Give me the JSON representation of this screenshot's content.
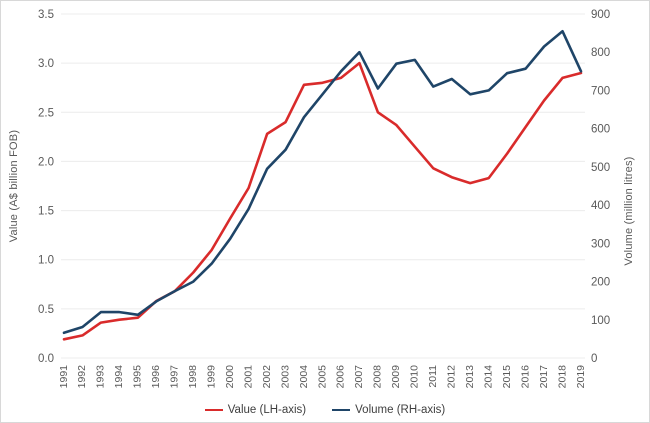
{
  "chart_data": {
    "type": "line",
    "title": "",
    "x": [
      "1991",
      "1992",
      "1993",
      "1994",
      "1995",
      "1996",
      "1997",
      "1998",
      "1999",
      "2000",
      "2001",
      "2002",
      "2003",
      "2004",
      "2005",
      "2006",
      "2007",
      "2008",
      "2009",
      "2010",
      "2011",
      "2012",
      "2013",
      "2014",
      "2015",
      "2016",
      "2017",
      "2018",
      "2019"
    ],
    "series": [
      {
        "name": "Value (LH-axis)",
        "axis": "left",
        "color": "#d92b2b",
        "values": [
          0.19,
          0.23,
          0.36,
          0.39,
          0.41,
          0.58,
          0.68,
          0.87,
          1.1,
          1.42,
          1.73,
          2.28,
          2.4,
          2.78,
          2.8,
          2.85,
          3.0,
          2.5,
          2.37,
          2.15,
          1.93,
          1.84,
          1.78,
          1.83,
          2.08,
          2.35,
          2.62,
          2.85,
          2.9
        ]
      },
      {
        "name": "Volume (RH-axis)",
        "axis": "right",
        "color": "#1f4568",
        "values": [
          66,
          81,
          120,
          120,
          113,
          148,
          175,
          200,
          247,
          312,
          390,
          495,
          545,
          630,
          690,
          750,
          800,
          705,
          770,
          780,
          710,
          730,
          690,
          700,
          745,
          757,
          815,
          855,
          750
        ]
      }
    ],
    "left_axis": {
      "label": "Value (A$ billion FOB)",
      "min": 0,
      "max": 3.5,
      "ticks": [
        "0.0",
        "0.5",
        "1.0",
        "1.5",
        "2.0",
        "2.5",
        "3.0",
        "3.5"
      ]
    },
    "right_axis": {
      "label": "Volume (million litres)",
      "min": 0,
      "max": 900,
      "ticks": [
        "0",
        "100",
        "200",
        "300",
        "400",
        "500",
        "600",
        "700",
        "800",
        "900"
      ]
    },
    "grid": true,
    "gridline_color": "#ececec",
    "tick_color": "#595959",
    "legend_position": "bottom"
  }
}
